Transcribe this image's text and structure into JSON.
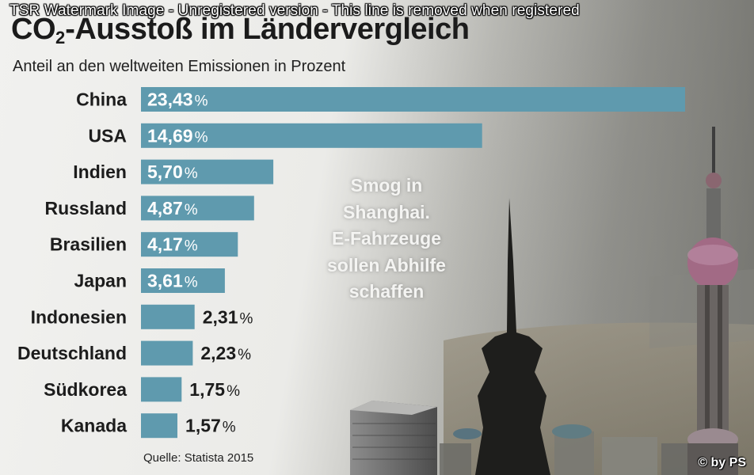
{
  "watermark": "TSR Watermark Image - Unregistered version - This line is removed when registered",
  "title_prefix": "CO",
  "title_sub": "2",
  "title_suffix": "-Ausstoß im Ländervergleich",
  "subtitle": "Anteil an den weltweiten Emissionen in Prozent",
  "caption_lines": [
    "Smog in",
    "Shanghai.",
    "E-Fahrzeuge",
    "sollen Abhilfe",
    "schaffen"
  ],
  "source": "Quelle: Statista 2015",
  "credit": "© by PS",
  "colors": {
    "bar": "#5f9aae",
    "label_inside": "#ffffff",
    "label_outside": "#1c1c1c",
    "text": "#1c1c1c"
  },
  "chart_data": {
    "type": "bar",
    "orientation": "horizontal",
    "categories": [
      "China",
      "USA",
      "Indien",
      "Russland",
      "Brasilien",
      "Japan",
      "Indonesien",
      "Deutschland",
      "Südkorea",
      "Kanada"
    ],
    "values": [
      23.43,
      14.69,
      5.7,
      4.87,
      4.17,
      3.61,
      2.31,
      2.23,
      1.75,
      1.57
    ],
    "value_labels": [
      "23,43",
      "14,69",
      "5,70",
      "4,87",
      "4,17",
      "3,61",
      "2,31",
      "2,23",
      "1,75",
      "1,57"
    ],
    "unit": "%",
    "title": "CO2-Ausstoß im Ländervergleich",
    "subtitle": "Anteil an den weltweiten Emissionen in Prozent",
    "grid": false,
    "legend": "none"
  }
}
